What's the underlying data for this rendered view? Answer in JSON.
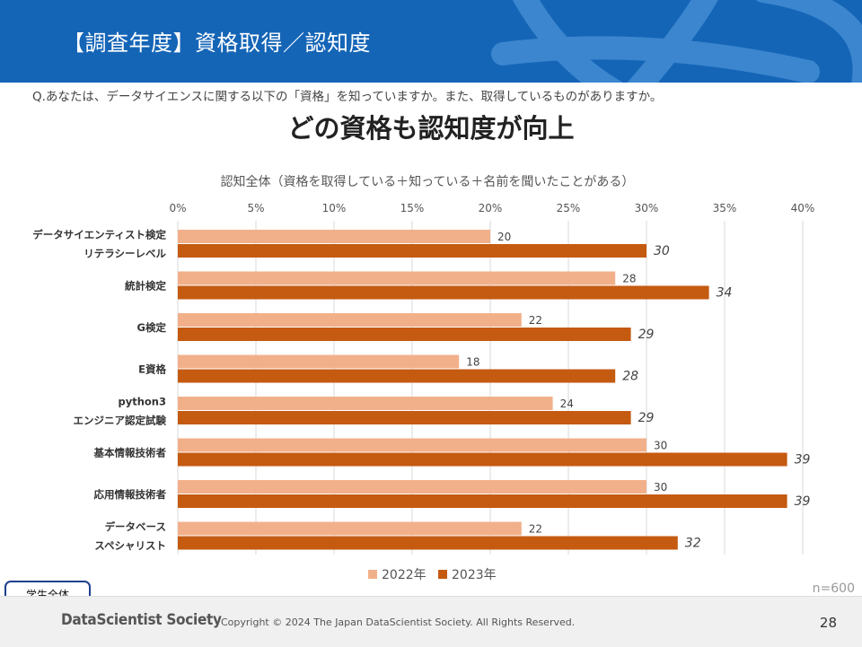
{
  "header": {
    "title": "【調査年度】資格取得／認知度"
  },
  "question": "Q.あなたは、データサイエンスに関する以下の「資格」を知っていますか。また、取得しているものがありますか。",
  "headline": "どの資格も認知度が向上",
  "chart_data": {
    "type": "bar",
    "orientation": "horizontal",
    "title": "認知全体（資格を取得している＋知っている＋名前を聞いたことがある）",
    "categories": [
      [
        "データサイエンティスト検定",
        "リテラシーレベル"
      ],
      [
        "統計検定"
      ],
      [
        "G検定"
      ],
      [
        "E資格"
      ],
      [
        "python3",
        "エンジニア認定試験"
      ],
      [
        "基本情報技術者"
      ],
      [
        "応用情報技術者"
      ],
      [
        "データベース",
        "スペシャリスト"
      ]
    ],
    "series": [
      {
        "name": "2022年",
        "color": "#f2b08a",
        "values": [
          20,
          28,
          22,
          18,
          24,
          30,
          30,
          22
        ]
      },
      {
        "name": "2023年",
        "color": "#c55a11",
        "values": [
          30,
          34,
          29,
          28,
          29,
          39,
          39,
          32
        ]
      }
    ],
    "xlim": [
      0,
      40
    ],
    "xticks": [
      "0%",
      "5%",
      "10%",
      "15%",
      "20%",
      "25%",
      "30%",
      "35%",
      "40%"
    ],
    "grid": true,
    "legend_position": "bottom"
  },
  "segment_label": "学生全体",
  "sample_size": "n=600",
  "footer": {
    "logo": "DataScientist Society",
    "copyright": "Copyright © 2024  The Japan DataScientist Society. All Rights Reserved.",
    "page": "28"
  }
}
